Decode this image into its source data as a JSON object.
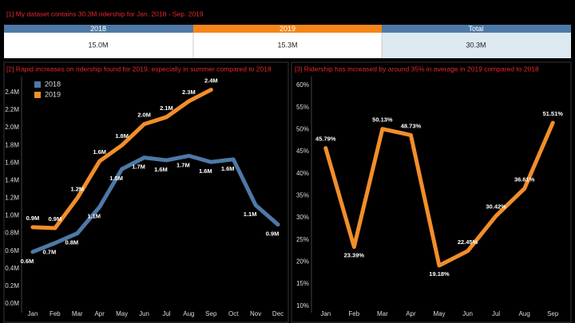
{
  "summary": {
    "title": "[1] My dataset contains 30.3M ridership for Jan. 2018 - Sep. 2019",
    "headers": [
      "2018",
      "2019",
      "Total"
    ],
    "values": [
      "15.0M",
      "15.3M",
      "30.3M"
    ]
  },
  "chart_data": [
    {
      "type": "line",
      "title": "[2] Rapid increases on ridership found for 2019, especially in summer compared to 2018",
      "categories": [
        "Jan",
        "Feb",
        "Mar",
        "Apr",
        "May",
        "Jun",
        "Jul",
        "Aug",
        "Sep",
        "Oct",
        "Nov",
        "Dec"
      ],
      "series": [
        {
          "name": "2018",
          "color": "#4e79a7",
          "values": [
            0.59,
            0.69,
            0.8,
            1.1,
            1.53,
            1.66,
            1.63,
            1.68,
            1.61,
            1.64,
            1.12,
            0.9
          ],
          "value_labels": [
            "0.6M",
            "0.7M",
            "0.8M",
            "1.1M",
            "1.5M",
            "1.7M",
            "1.6M",
            "1.7M",
            "1.6M",
            "1.6M",
            "1.1M",
            "0.9M"
          ]
        },
        {
          "name": "2019",
          "color": "#f28e2b",
          "values": [
            0.87,
            0.86,
            1.2,
            1.62,
            1.8,
            2.04,
            2.12,
            2.3,
            2.43,
            null,
            null,
            null
          ],
          "value_labels": [
            "0.9M",
            "0.9M",
            "1.2M",
            "1.6M",
            "1.8M",
            "2.0M",
            "2.1M",
            "2.3M",
            "2.4M",
            null,
            null,
            null
          ]
        }
      ],
      "ylim": [
        -0.1,
        2.58
      ],
      "yticks": [
        {
          "value": 0,
          "label": "0.0M"
        },
        {
          "value": 0.2,
          "label": "0.2M"
        },
        {
          "value": 0.4,
          "label": "0.4M"
        },
        {
          "value": 0.6,
          "label": "0.6M"
        },
        {
          "value": 0.8,
          "label": "0.8M"
        },
        {
          "value": 1.0,
          "label": "1.0M"
        },
        {
          "value": 1.2,
          "label": "1.2M"
        },
        {
          "value": 1.4,
          "label": "1.4M"
        },
        {
          "value": 1.6,
          "label": "1.6M"
        },
        {
          "value": 1.8,
          "label": "1.8M"
        },
        {
          "value": 2.0,
          "label": "2.0M"
        },
        {
          "value": 2.2,
          "label": "2.2M"
        },
        {
          "value": 2.4,
          "label": "2.4M"
        }
      ],
      "grid": false,
      "legend": "top-left"
    },
    {
      "type": "line",
      "title": "[3] Ridership has increased by around 35% in average in 2019 compared to 2018",
      "categories": [
        "Jan",
        "Feb",
        "Mar",
        "Apr",
        "May",
        "Jun",
        "Jul",
        "Aug",
        "Sep"
      ],
      "color": "#f28e2b",
      "values": [
        45.79,
        23.39,
        50.13,
        48.73,
        19.18,
        22.45,
        30.42,
        36.61,
        51.51
      ],
      "value_labels": [
        "45.79%",
        "23.39%",
        "50.13%",
        "48.73%",
        "19.18%",
        "22.45%",
        "30.42%",
        "36.61%",
        "51.51%"
      ],
      "ylim": [
        8.5,
        62
      ],
      "yticks": [
        {
          "value": 10,
          "label": "10%"
        },
        {
          "value": 15,
          "label": "15%"
        },
        {
          "value": 20,
          "label": "20%"
        },
        {
          "value": 25,
          "label": "25%"
        },
        {
          "value": 30,
          "label": "30%"
        },
        {
          "value": 35,
          "label": "35%"
        },
        {
          "value": 40,
          "label": "40%"
        },
        {
          "value": 45,
          "label": "45%"
        },
        {
          "value": 50,
          "label": "50%"
        },
        {
          "value": 55,
          "label": "55%"
        },
        {
          "value": 60,
          "label": "60%"
        }
      ],
      "grid": false
    }
  ]
}
